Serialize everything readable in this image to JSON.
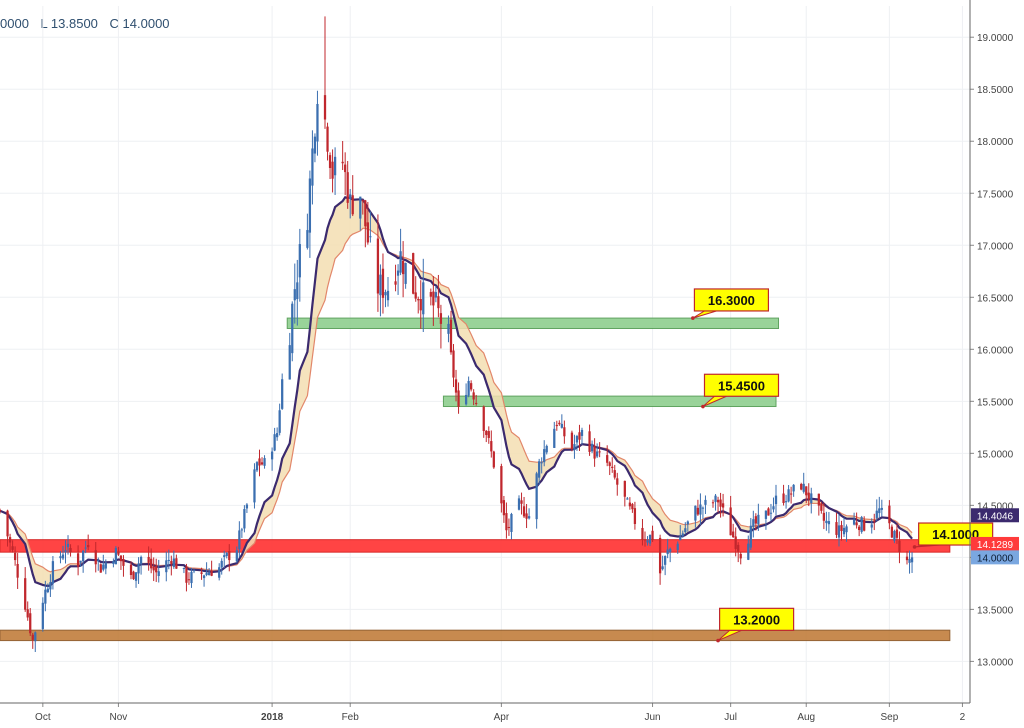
{
  "ohlc_readout": {
    "open": "0000",
    "low": "L 13.8500",
    "close": "C 14.0000"
  },
  "colors": {
    "up": "#3b6fb0",
    "down": "#c0272d",
    "ma_outer": "#3b2a6e",
    "ma_inner": "#e2876a",
    "band_fill": "#f3deb1",
    "red_zone": "#ff3b3b",
    "green_zone": "#8fcf8f",
    "brown_zone": "#c17e3c",
    "callout": "#ffff00"
  },
  "chart_data": {
    "type": "candlestick",
    "y_range": [
      12.6,
      19.3
    ],
    "y_ticks": [
      "13.0000",
      "13.5000",
      "14.0000",
      "14.5000",
      "15.0000",
      "15.5000",
      "16.0000",
      "16.5000",
      "17.0000",
      "17.5000",
      "18.0000",
      "18.5000",
      "19.0000"
    ],
    "x_labels": [
      "Oct",
      "Nov",
      "2018",
      "Feb",
      "Apr",
      "Jun",
      "Jul",
      "Aug",
      "Sep",
      "2"
    ],
    "date_range": [
      "2017-09-15",
      "2018-10-05"
    ],
    "x_label_dates": [
      "2017-10-02",
      "2017-11-01",
      "2018-01-01",
      "2018-02-01",
      "2018-04-02",
      "2018-06-01",
      "2018-07-02",
      "2018-08-01",
      "2018-09-03",
      "2018-10-02"
    ],
    "zones": [
      {
        "name": "red-zone",
        "color": "red",
        "y_low": 14.05,
        "y_high": 14.17,
        "from": "2017-09-15",
        "to": "2018-09-27"
      },
      {
        "name": "brown-zone",
        "color": "brown",
        "y_low": 13.2,
        "y_high": 13.3,
        "from": "2017-09-15",
        "to": "2018-09-27"
      },
      {
        "name": "green-zone-1",
        "color": "green",
        "y_low": 16.2,
        "y_high": 16.3,
        "from": "2018-01-07",
        "to": "2018-07-21"
      },
      {
        "name": "green-zone-2",
        "color": "green",
        "y_low": 15.45,
        "y_high": 15.55,
        "from": "2018-03-10",
        "to": "2018-07-20"
      }
    ],
    "callouts": [
      {
        "text": "16.3000",
        "value": 16.3,
        "date": "2018-06-17",
        "box_date": "2018-06-20",
        "box_y": 16.58
      },
      {
        "text": "15.4500",
        "value": 15.45,
        "date": "2018-06-21",
        "box_date": "2018-06-24",
        "box_y": 15.76
      },
      {
        "text": "14.1000",
        "value": 14.1,
        "date": "2018-09-13",
        "box_date": "2018-09-17",
        "box_y": 14.33
      },
      {
        "text": "13.2000",
        "value": 13.2,
        "date": "2018-06-27",
        "box_date": "2018-06-30",
        "box_y": 13.51
      }
    ],
    "price_tags": [
      {
        "text": "14.4046",
        "value": 14.4046,
        "color": "#3b2a6e"
      },
      {
        "text": "14.1289",
        "value": 14.1289,
        "color": "#ff3b3b"
      },
      {
        "text": "14.0000",
        "value": 14.0,
        "color": "#7aa7e0"
      }
    ],
    "price_path": [
      [
        "2017-09-15",
        14.45
      ],
      [
        "2017-09-20",
        14.05
      ],
      [
        "2017-09-25",
        13.55
      ],
      [
        "2017-09-28",
        13.2
      ],
      [
        "2017-10-02",
        13.6
      ],
      [
        "2017-10-06",
        13.9
      ],
      [
        "2017-10-11",
        14.1
      ],
      [
        "2017-10-16",
        13.95
      ],
      [
        "2017-10-20",
        14.15
      ],
      [
        "2017-10-25",
        13.9
      ],
      [
        "2017-10-31",
        14.05
      ],
      [
        "2017-11-06",
        13.8
      ],
      [
        "2017-11-10",
        14.0
      ],
      [
        "2017-11-16",
        13.85
      ],
      [
        "2017-11-22",
        14.0
      ],
      [
        "2017-11-28",
        13.8
      ],
      [
        "2017-12-05",
        13.85
      ],
      [
        "2017-12-11",
        13.9
      ],
      [
        "2017-12-14",
        14.0
      ],
      [
        "2017-12-18",
        14.1
      ],
      [
        "2017-12-22",
        14.5
      ],
      [
        "2017-12-26",
        14.9
      ],
      [
        "2017-12-29",
        14.9
      ],
      [
        "2018-01-03",
        15.2
      ],
      [
        "2018-01-05",
        15.7
      ],
      [
        "2018-01-08",
        16.2
      ],
      [
        "2018-01-10",
        16.6
      ],
      [
        "2018-01-12",
        16.9
      ],
      [
        "2018-01-15",
        17.3
      ],
      [
        "2018-01-17",
        17.9
      ],
      [
        "2018-01-19",
        18.5
      ],
      [
        "2018-01-22",
        18.2
      ],
      [
        "2018-01-25",
        17.7
      ],
      [
        "2018-01-29",
        17.8
      ],
      [
        "2018-02-01",
        17.4
      ],
      [
        "2018-02-05",
        17.5
      ],
      [
        "2018-02-08",
        17.05
      ],
      [
        "2018-02-12",
        16.6
      ],
      [
        "2018-02-16",
        16.6
      ],
      [
        "2018-02-21",
        16.9
      ],
      [
        "2018-02-26",
        16.6
      ],
      [
        "2018-03-02",
        16.5
      ],
      [
        "2018-03-07",
        16.4
      ],
      [
        "2018-03-12",
        16.1
      ],
      [
        "2018-03-16",
        15.4
      ],
      [
        "2018-03-20",
        15.7
      ],
      [
        "2018-03-23",
        15.5
      ],
      [
        "2018-03-27",
        15.2
      ],
      [
        "2018-03-30",
        14.9
      ],
      [
        "2018-04-02",
        14.5
      ],
      [
        "2018-04-04",
        14.25
      ],
      [
        "2018-04-09",
        14.5
      ],
      [
        "2018-04-13",
        14.4
      ],
      [
        "2018-04-17",
        14.9
      ],
      [
        "2018-04-20",
        15.1
      ],
      [
        "2018-04-24",
        15.3
      ],
      [
        "2018-04-30",
        15.05
      ],
      [
        "2018-05-04",
        15.2
      ],
      [
        "2018-05-09",
        15.0
      ],
      [
        "2018-05-14",
        14.9
      ],
      [
        "2018-05-18",
        14.7
      ],
      [
        "2018-05-23",
        14.45
      ],
      [
        "2018-05-28",
        14.2
      ],
      [
        "2018-06-01",
        14.2
      ],
      [
        "2018-06-04",
        13.85
      ],
      [
        "2018-06-07",
        14.05
      ],
      [
        "2018-06-12",
        14.2
      ],
      [
        "2018-06-18",
        14.45
      ],
      [
        "2018-06-22",
        14.5
      ],
      [
        "2018-06-27",
        14.55
      ],
      [
        "2018-07-02",
        14.25
      ],
      [
        "2018-07-06",
        14.05
      ],
      [
        "2018-07-11",
        14.3
      ],
      [
        "2018-07-16",
        14.4
      ],
      [
        "2018-07-20",
        14.55
      ],
      [
        "2018-07-25",
        14.6
      ],
      [
        "2018-07-30",
        14.7
      ],
      [
        "2018-08-03",
        14.55
      ],
      [
        "2018-08-08",
        14.35
      ],
      [
        "2018-08-14",
        14.25
      ],
      [
        "2018-08-20",
        14.35
      ],
      [
        "2018-08-25",
        14.3
      ],
      [
        "2018-08-30",
        14.45
      ],
      [
        "2018-09-03",
        14.3
      ],
      [
        "2018-09-06",
        14.15
      ],
      [
        "2018-09-10",
        13.95
      ],
      [
        "2018-09-12",
        14.0
      ]
    ]
  }
}
